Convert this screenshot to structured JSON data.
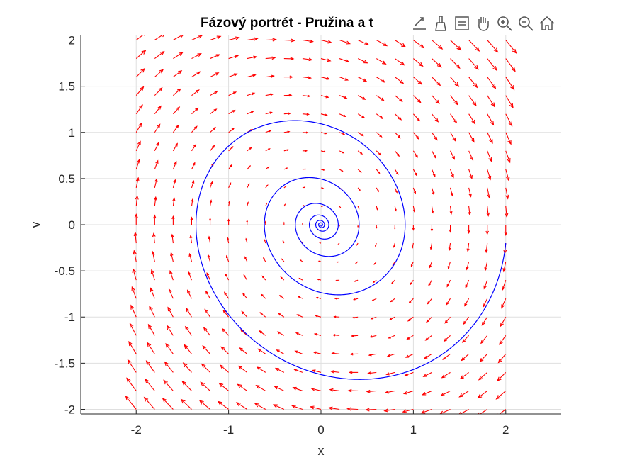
{
  "chart_data": {
    "type": "quiver",
    "title": "Fázový portrét - Pružina a t",
    "xlabel": "x",
    "ylabel": "v",
    "xlim": [
      -2.6,
      2.6
    ],
    "ylim": [
      -2.05,
      2.05
    ],
    "xticks": [
      -2,
      -1,
      0,
      1,
      2
    ],
    "yticks": [
      2,
      1.5,
      1,
      0.5,
      0,
      -0.5,
      -1,
      -1.5,
      -2
    ],
    "xtick_labels": [
      "-2",
      "-1",
      "0",
      "1",
      "2"
    ],
    "ytick_labels": [
      "2",
      "1.5",
      "1",
      "0.5",
      "0",
      "-0.5",
      "-1",
      "-1.5",
      "-2"
    ],
    "grid": true,
    "vector_field": {
      "name": "field",
      "color": "#ff0000",
      "x_range": [
        -2,
        2
      ],
      "y_range": [
        -2,
        2
      ],
      "step": 0.2,
      "equations": {
        "dx": "v",
        "dv": "-x - 0.25*v"
      }
    },
    "trajectory": {
      "name": "trajectory",
      "color": "#0000ff",
      "x0": 2,
      "v0": -0.2,
      "damping": 0.25,
      "t_end": 40
    }
  },
  "toolbar": {
    "tools": [
      {
        "name": "export-icon"
      },
      {
        "name": "brush-icon"
      },
      {
        "name": "data-tips-icon"
      },
      {
        "name": "pan-hand-icon"
      },
      {
        "name": "zoom-in-icon"
      },
      {
        "name": "zoom-out-icon"
      },
      {
        "name": "home-icon"
      }
    ]
  }
}
